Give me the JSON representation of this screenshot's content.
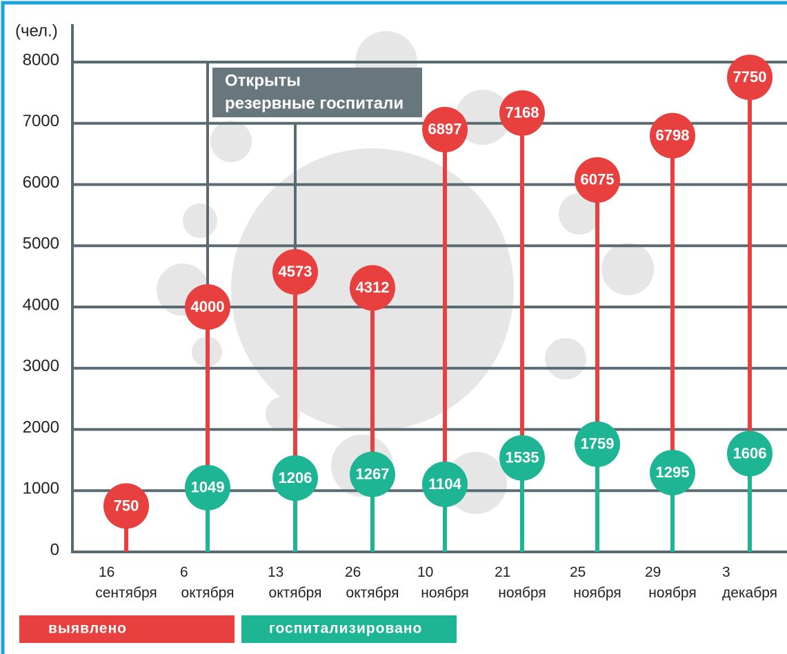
{
  "chart_data": {
    "type": "lollipop",
    "y_axis_label": "(чел.)",
    "categories": [
      "16 сентября",
      "6 октября",
      "13 октября",
      "26 октября",
      "10 ноября",
      "21 ноября",
      "25 ноября",
      "29 ноября",
      "3 декабря"
    ],
    "series": [
      {
        "name": "выявлено",
        "color": "#e8403f",
        "values": [
          750,
          4000,
          4573,
          4312,
          6897,
          7168,
          6075,
          6798,
          7750
        ]
      },
      {
        "name": "госпитализировано",
        "color": "#1db594",
        "values": [
          null,
          1049,
          1206,
          1267,
          1104,
          1535,
          1759,
          1295,
          1606
        ]
      }
    ],
    "ylim": [
      0,
      8000
    ],
    "yticks": [
      0,
      1000,
      2000,
      3000,
      4000,
      5000,
      6000,
      7000,
      8000
    ],
    "grid": true,
    "annotation": {
      "lines": [
        "Открыты",
        "резервные госпитали"
      ]
    }
  }
}
